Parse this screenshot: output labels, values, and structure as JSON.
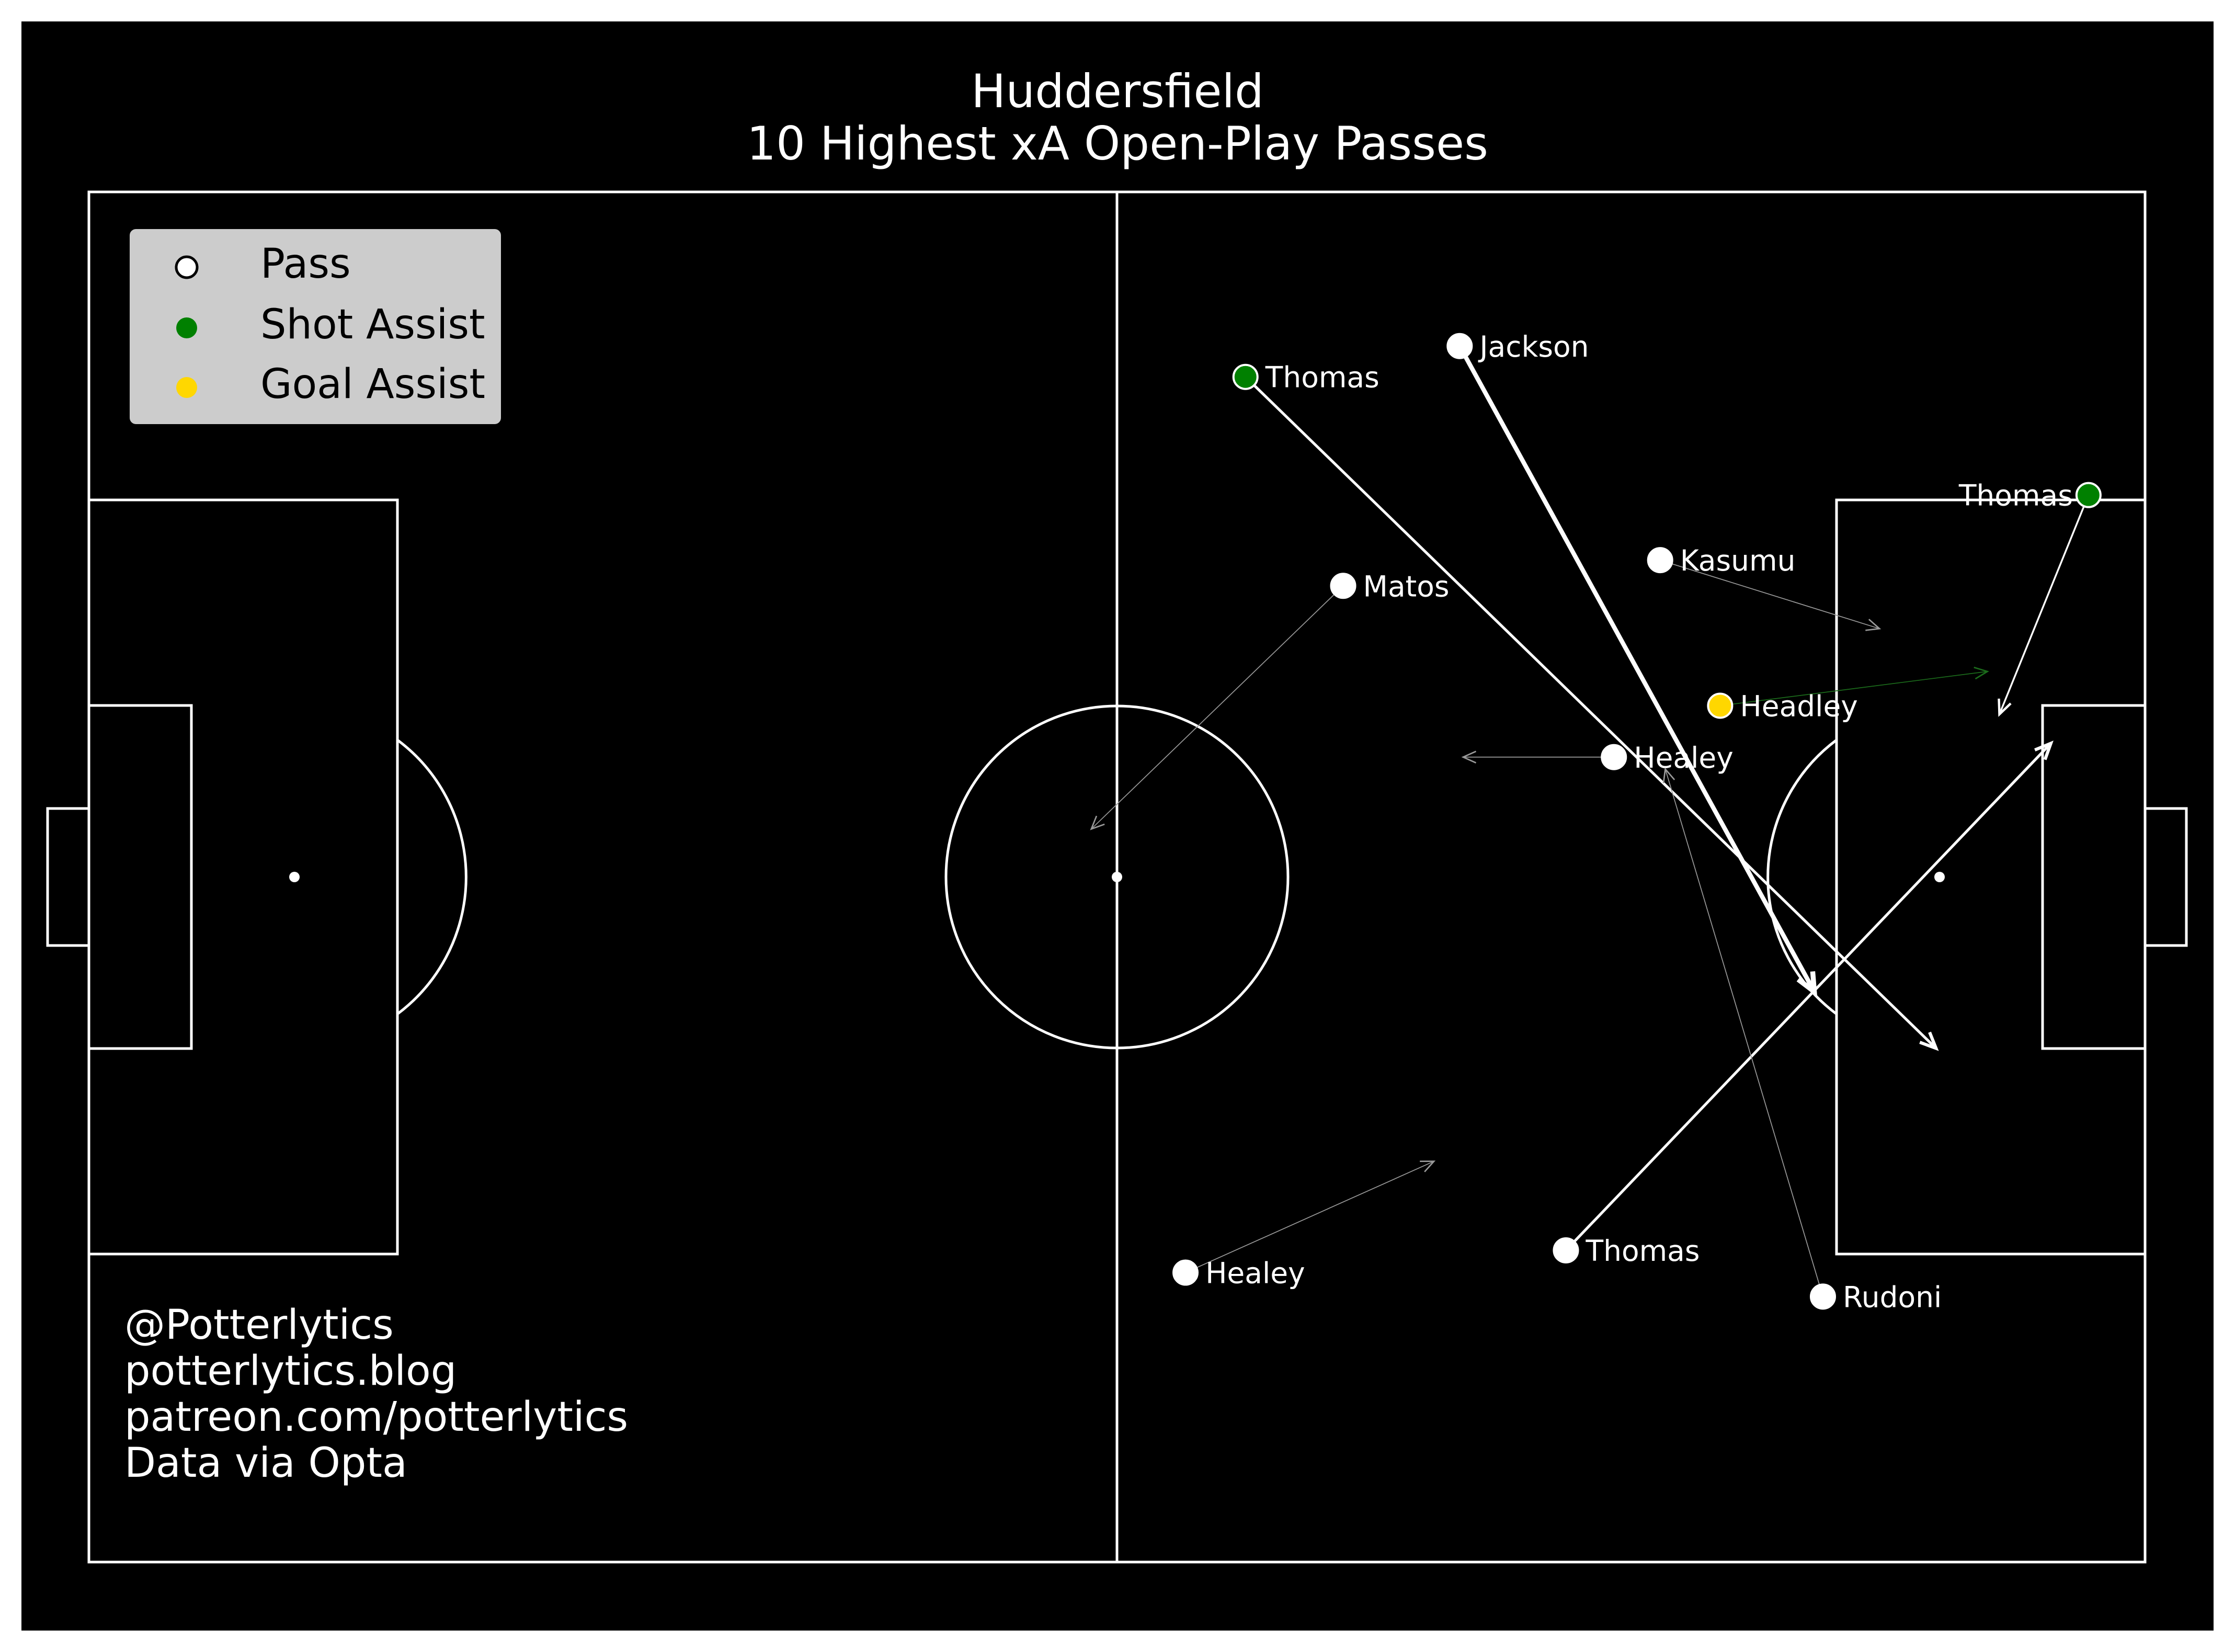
{
  "chart_data": {
    "type": "scatter",
    "title": "Huddersfield",
    "subtitle": "10 Highest xA Open-Play Passes",
    "pitch": {
      "length": 120,
      "width": 80
    },
    "legend": {
      "placement": "top-left",
      "entries": [
        {
          "label": "Pass",
          "kind": "pass"
        },
        {
          "label": "Shot Assist",
          "kind": "shot_assist"
        },
        {
          "label": "Goal Assist",
          "kind": "goal_assist"
        }
      ]
    },
    "credits": [
      "@Potterlytics",
      "potterlytics.blog",
      "patreon.com/potterlytics",
      "Data via Opta"
    ],
    "colors": {
      "background": "#000000",
      "lines": "#ffffff",
      "pass": "#ffffff",
      "shot_assist": "#008000",
      "goal_assist": "#ffd700",
      "legend_box": "#cccccc"
    },
    "passes": [
      {
        "player": "Thomas",
        "kind": "shot_assist",
        "start": [
          67.5,
          69.2
        ],
        "end": [
          107.8,
          30.0
        ],
        "weight": 3
      },
      {
        "player": "Jackson",
        "kind": "pass",
        "start": [
          80.0,
          71.0
        ],
        "end": [
          100.7,
          33.3
        ],
        "weight": 5
      },
      {
        "player": "Kasumu",
        "kind": "pass",
        "start": [
          91.7,
          58.5
        ],
        "end": [
          104.5,
          54.5
        ],
        "weight": 1
      },
      {
        "player": "Matos",
        "kind": "pass",
        "start": [
          73.2,
          57.0
        ],
        "end": [
          58.5,
          42.8
        ],
        "weight": 1
      },
      {
        "player": "Headley",
        "kind": "goal_assist",
        "start": [
          95.2,
          50.0
        ],
        "end": [
          110.8,
          52.0
        ],
        "weight": 1
      },
      {
        "player": "Healey",
        "kind": "pass",
        "start": [
          89.0,
          47.0
        ],
        "end": [
          80.2,
          47.0
        ],
        "weight": 1
      },
      {
        "player": "Thomas",
        "kind": "shot_assist",
        "start": [
          116.7,
          62.3
        ],
        "end": [
          111.5,
          49.5
        ],
        "weight": 2
      },
      {
        "player": "Healey",
        "kind": "pass",
        "start": [
          64.0,
          16.9
        ],
        "end": [
          78.5,
          23.4
        ],
        "weight": 1
      },
      {
        "player": "Thomas",
        "kind": "pass",
        "start": [
          86.2,
          18.2
        ],
        "end": [
          114.5,
          47.8
        ],
        "weight": 3
      },
      {
        "player": "Rudoni",
        "kind": "pass",
        "start": [
          101.2,
          15.5
        ],
        "end": [
          92.0,
          46.3
        ],
        "weight": 1
      }
    ]
  }
}
